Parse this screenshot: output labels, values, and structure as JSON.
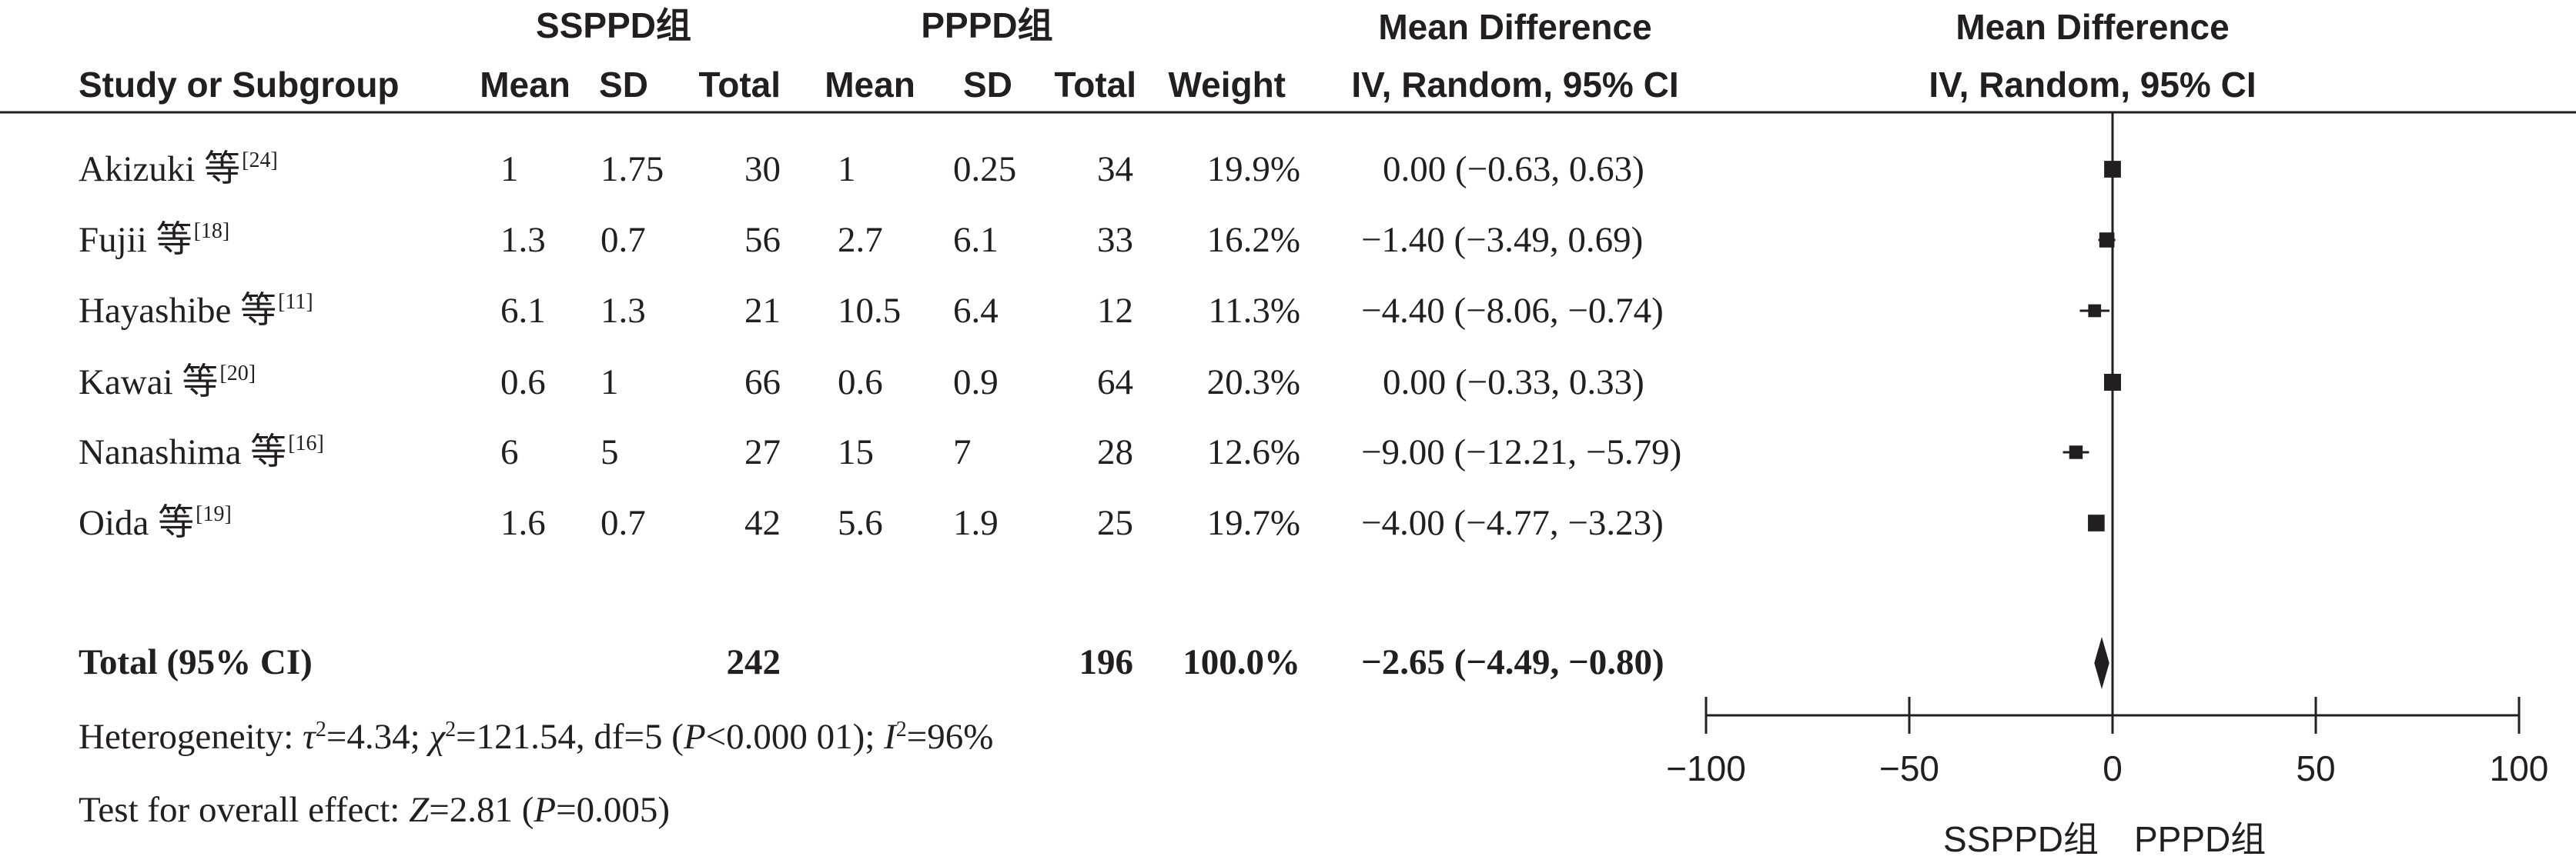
{
  "headers": {
    "group1": "SSPPD组",
    "group2": "PPPD组",
    "mean_difference": "Mean Difference",
    "method": "IV, Random, 95% CI",
    "study_or_subgroup": "Study or Subgroup",
    "mean": "Mean",
    "sd": "SD",
    "total": "Total",
    "weight": "Weight"
  },
  "studies": [
    {
      "name": "Akizuki 等",
      "ref": "[24]",
      "mean1": "1",
      "sd1": "1.75",
      "total1": "30",
      "mean2": "1",
      "sd2": "0.25",
      "total2": "34",
      "weight": "19.9%",
      "ci": "0.00 (−0.63, 0.63)"
    },
    {
      "name": "Fujii 等",
      "ref": "[18]",
      "mean1": "1.3",
      "sd1": "0.7",
      "total1": "56",
      "mean2": "2.7",
      "sd2": "6.1",
      "total2": "33",
      "weight": "16.2%",
      "ci": "−1.40 (−3.49, 0.69)"
    },
    {
      "name": "Hayashibe 等",
      "ref": "[11]",
      "mean1": "6.1",
      "sd1": "1.3",
      "total1": "21",
      "mean2": "10.5",
      "sd2": "6.4",
      "total2": "12",
      "weight": "11.3%",
      "ci": "−4.40 (−8.06, −0.74)"
    },
    {
      "name": "Kawai 等",
      "ref": "[20]",
      "mean1": "0.6",
      "sd1": "1",
      "total1": "66",
      "mean2": "0.6",
      "sd2": "0.9",
      "total2": "64",
      "weight": "20.3%",
      "ci": "0.00 (−0.33, 0.33)"
    },
    {
      "name": "Nanashima 等",
      "ref": "[16]",
      "mean1": "6",
      "sd1": "5",
      "total1": "27",
      "mean2": "15",
      "sd2": "7",
      "total2": "28",
      "weight": "12.6%",
      "ci": "−9.00 (−12.21, −5.79)"
    },
    {
      "name": "Oida 等",
      "ref": "[19]",
      "mean1": "1.6",
      "sd1": "0.7",
      "total1": "42",
      "mean2": "5.6",
      "sd2": "1.9",
      "total2": "25",
      "weight": "19.7%",
      "ci": "−4.00 (−4.77, −3.23)"
    }
  ],
  "total_row": {
    "label": "Total (95% CI)",
    "total1": "242",
    "total2": "196",
    "weight": "100.0%",
    "ci": "−2.65 (−4.49, −0.80)"
  },
  "footnotes": {
    "heterogeneity_prefix": "Heterogeneity: ",
    "tau": "τ",
    "tau_value": "=4.34; ",
    "chi": "χ",
    "chi_value": "=121.54, df=5 (",
    "p": "P",
    "p_value": "<0.000 01); ",
    "i": "I",
    "i_value": "=96%",
    "sup2": "2",
    "overall_prefix": "Test for overall effect: ",
    "z": "Z",
    "z_value": "=2.81 (",
    "p2": "P",
    "p2_value": "=0.005)"
  },
  "chart_data": {
    "type": "forest",
    "title": "",
    "xlabel_left": "SSPPD组",
    "xlabel_right": "PPPD组",
    "xlim": [
      -100,
      100
    ],
    "xticks": [
      -100,
      -50,
      0,
      50,
      100
    ],
    "xtick_labels": [
      "−100",
      "−50",
      "0",
      "50",
      "100"
    ],
    "studies": [
      {
        "name": "Akizuki",
        "md": 0.0,
        "lower": -0.63,
        "upper": 0.63,
        "weight": 19.9
      },
      {
        "name": "Fujii",
        "md": -1.4,
        "lower": -3.49,
        "upper": 0.69,
        "weight": 16.2
      },
      {
        "name": "Hayashibe",
        "md": -4.4,
        "lower": -8.06,
        "upper": -0.74,
        "weight": 11.3
      },
      {
        "name": "Kawai",
        "md": 0.0,
        "lower": -0.33,
        "upper": 0.33,
        "weight": 20.3
      },
      {
        "name": "Nanashima",
        "md": -9.0,
        "lower": -12.21,
        "upper": -5.79,
        "weight": 12.6
      },
      {
        "name": "Oida",
        "md": -4.0,
        "lower": -4.77,
        "upper": -3.23,
        "weight": 19.7
      }
    ],
    "pooled": {
      "md": -2.65,
      "lower": -4.49,
      "upper": -0.8
    },
    "colors": {
      "marker": "#231f20",
      "axis": "#231f20"
    }
  }
}
